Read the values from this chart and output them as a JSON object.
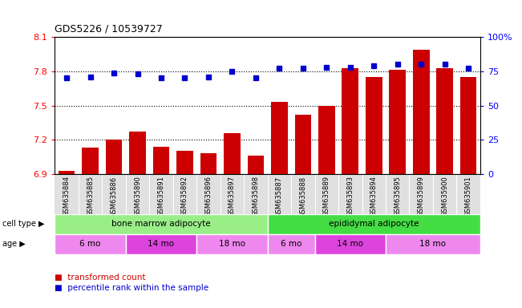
{
  "title": "GDS5226 / 10539727",
  "samples": [
    "GSM635884",
    "GSM635885",
    "GSM635886",
    "GSM635890",
    "GSM635891",
    "GSM635892",
    "GSM635896",
    "GSM635897",
    "GSM635898",
    "GSM635887",
    "GSM635888",
    "GSM635889",
    "GSM635893",
    "GSM635894",
    "GSM635895",
    "GSM635899",
    "GSM635900",
    "GSM635901"
  ],
  "bar_values": [
    6.93,
    7.13,
    7.2,
    7.27,
    7.14,
    7.1,
    7.08,
    7.26,
    7.06,
    7.53,
    7.42,
    7.5,
    7.83,
    7.75,
    7.81,
    7.99,
    7.83,
    7.75
  ],
  "dot_values": [
    70,
    71,
    74,
    73,
    70,
    70,
    71,
    75,
    70,
    77,
    77,
    78,
    78,
    79,
    80,
    80,
    80,
    77
  ],
  "ylim_left": [
    6.9,
    8.1
  ],
  "ylim_right": [
    0,
    100
  ],
  "yticks_left": [
    6.9,
    7.2,
    7.5,
    7.8,
    8.1
  ],
  "yticks_right": [
    0,
    25,
    50,
    75,
    100
  ],
  "bar_color": "#cc0000",
  "dot_color": "#0000cc",
  "grid_lines": [
    7.2,
    7.5,
    7.8
  ],
  "cell_type_groups": [
    {
      "label": "bone marrow adipocyte",
      "start": 0,
      "end": 9,
      "color": "#99ee88"
    },
    {
      "label": "epididymal adipocyte",
      "start": 9,
      "end": 18,
      "color": "#44dd44"
    }
  ],
  "age_groups": [
    {
      "label": "6 mo",
      "start": 0,
      "end": 3,
      "color": "#ee88ee"
    },
    {
      "label": "14 mo",
      "start": 3,
      "end": 6,
      "color": "#dd44dd"
    },
    {
      "label": "18 mo",
      "start": 6,
      "end": 9,
      "color": "#ee88ee"
    },
    {
      "label": "6 mo",
      "start": 9,
      "end": 11,
      "color": "#ee88ee"
    },
    {
      "label": "14 mo",
      "start": 11,
      "end": 14,
      "color": "#dd44dd"
    },
    {
      "label": "18 mo",
      "start": 14,
      "end": 18,
      "color": "#ee88ee"
    }
  ],
  "legend_bar_label": "transformed count",
  "legend_dot_label": "percentile rank within the sample",
  "cell_type_label": "cell type",
  "age_label": "age"
}
